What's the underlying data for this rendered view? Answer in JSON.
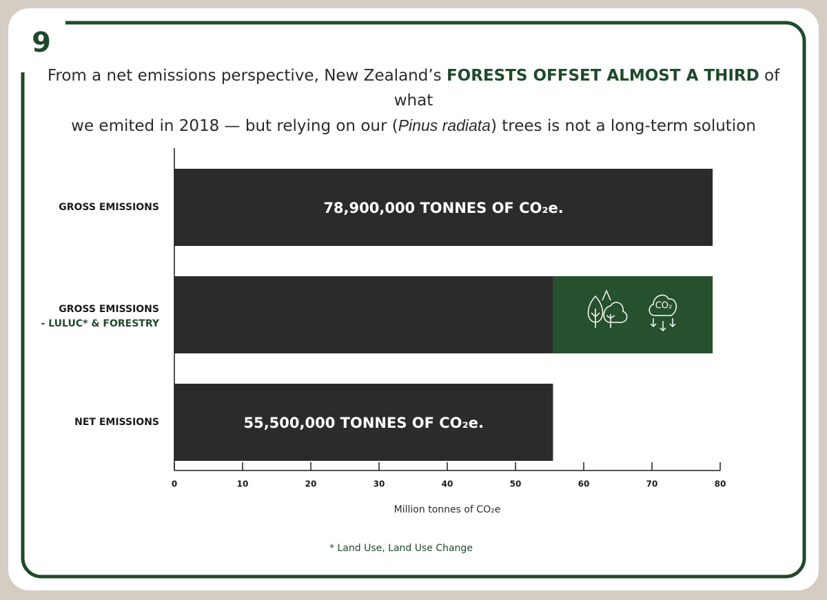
{
  "page_number": "9",
  "title_parts": [
    "From a net emissions perspective, New Zealand’s ",
    "FORESTS OFFSET ALMOST A THIRD",
    " of what",
    "we emited in 2018 — but relying on our (",
    "Pinus radiata",
    ") trees is not a long-term solution"
  ],
  "chart_data": {
    "type": "bar",
    "orientation": "horizontal",
    "stacked": true,
    "categories": [
      "GROSS EMISSIONS",
      "GROSS EMISSIONS",
      "NET EMISSIONS"
    ],
    "category_sublabels": [
      null,
      "- LULUC* & FORESTRY",
      null
    ],
    "series": [
      {
        "color": "#2b2b2b",
        "values": [
          78.9,
          55.5,
          55.5
        ],
        "value_labels": [
          "78,900,000 TONNES OF CO₂e.",
          null,
          "55,500,000 TONNES OF CO₂e."
        ]
      },
      {
        "color": "#26502e",
        "values": [
          null,
          23.4,
          null
        ]
      }
    ],
    "xlim": [
      0,
      80
    ],
    "xticks": [
      0,
      10,
      20,
      30,
      40,
      50,
      60,
      70,
      80
    ],
    "x_label": "Million tonnes of CO₂e",
    "icon_label": "CO₂"
  },
  "footnote": "* Land Use, Land Use Change"
}
